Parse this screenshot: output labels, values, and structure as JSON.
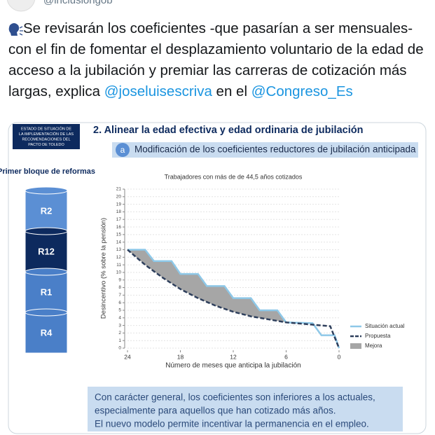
{
  "header": {
    "handle": "@inclusiongob"
  },
  "tweet": {
    "text": "Se revisarán los coeficientes -que pasarían a ser mensuales- con el fin de fomentar el desplazamiento voluntario de la edad de acceso a la jubilación y premiar las carreras de cotización más largas, explica ",
    "mention_1": "@joseluisescriva",
    "text_2": " en el ",
    "mention_2": "@Congreso_Es"
  },
  "slide": {
    "badge": "ESTADO DE SITUACIÓN DE LA IMPLEMENTACIÓN DE LAS RECOMENDACIONES DEL PACTO DE TOLEDO",
    "block_title": "Primer bloque de reformas",
    "blocks": [
      "R2",
      "R12",
      "R1",
      "R4"
    ],
    "title": "2. Alinear la edad efectiva y edad ordinaria de jubilación",
    "subtitle_letter": "a",
    "subtitle": "Modificación de los coeficientes reductores de jubilación anticipada",
    "summary": [
      "Con carácter general, los coeficientes son inferiores a los actuales,",
      "especialmente para aquellos que han cotizado más años.",
      "El nuevo modelo permite incentivar la permanencia en el empleo."
    ]
  },
  "chart_data": {
    "type": "line",
    "title": "Trabajadores con más de de 44,5 años cotizados",
    "x_label": "Número de meses que anticipa la jubilación",
    "y_label": "Desincentivo (% sobre la pensión)",
    "xlim": [
      24,
      0
    ],
    "xticks": [
      24,
      18,
      12,
      6,
      0
    ],
    "ylim": [
      0,
      21
    ],
    "yticks": [
      0,
      1,
      2,
      3,
      4,
      5,
      6,
      7,
      8,
      9,
      10,
      11,
      12,
      13,
      14,
      15,
      16,
      17,
      18,
      19,
      20,
      21
    ],
    "grid": true,
    "series": [
      {
        "name": "Situación actual",
        "color": "#8ec8e8",
        "dashed": false,
        "x": [
          24,
          22,
          21,
          19,
          18,
          16,
          15,
          13,
          12,
          10,
          9,
          7,
          6,
          3,
          2,
          0.5,
          0
        ],
        "values": [
          13,
          13,
          11.5,
          11.5,
          9.8,
          9.8,
          8.2,
          8.2,
          6.6,
          6.6,
          5,
          5,
          3.4,
          3.3,
          1.7,
          1.7,
          0
        ]
      },
      {
        "name": "Propuesta",
        "color": "#2e3f5c",
        "dashed": true,
        "x": [
          24,
          22,
          20,
          18,
          16,
          14,
          12,
          10,
          8,
          6,
          4,
          1,
          0
        ],
        "values": [
          13,
          11,
          9.3,
          7.8,
          6.6,
          5.6,
          4.8,
          4.2,
          3.8,
          3.4,
          3.2,
          2.9,
          0
        ]
      }
    ],
    "area": {
      "name": "Mejora",
      "color": "#a6a6a6"
    }
  }
}
